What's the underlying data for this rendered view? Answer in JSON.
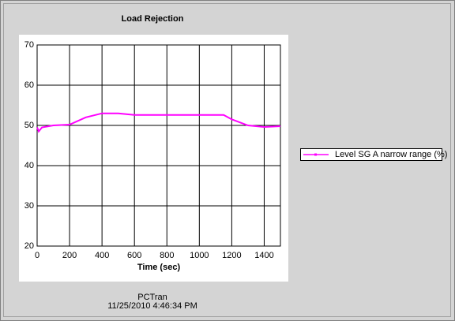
{
  "chart_data": {
    "type": "line",
    "title": "Load Rejection",
    "xlabel": "Time (sec)",
    "footer": [
      "PCTran",
      "11/25/2010 4:46:34 PM"
    ],
    "x": [
      0,
      10,
      30,
      100,
      200,
      300,
      400,
      500,
      600,
      1150,
      1200,
      1300,
      1400,
      1500
    ],
    "series": [
      {
        "name": "Level SG A narrow range (%)",
        "color": "#ff00ff",
        "values": [
          49.5,
          48.5,
          49.5,
          50,
          50.2,
          52,
          53,
          53,
          52.6,
          52.6,
          51.5,
          50,
          49.6,
          49.8
        ]
      }
    ],
    "xlim": [
      0,
      1500
    ],
    "xticks": [
      0,
      200,
      400,
      600,
      800,
      1000,
      1200,
      1400
    ],
    "ylim": [
      20,
      70
    ],
    "yticks": [
      20,
      30,
      40,
      50,
      60,
      70
    ],
    "grid": true
  }
}
